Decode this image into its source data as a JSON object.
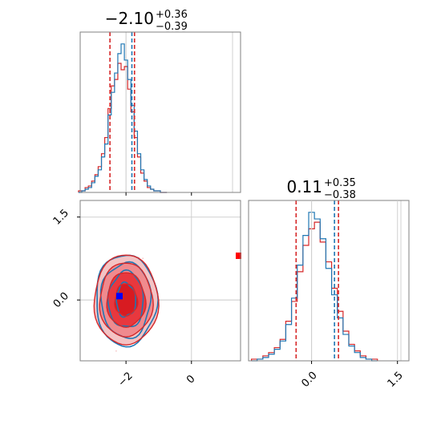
{
  "chart_data": [
    {
      "type": "histogram",
      "panel": "marginal-param-1",
      "title": {
        "value": "−2.10",
        "upper": "+0.36",
        "lower": "−0.39"
      },
      "xlim": [
        -3.4,
        1.5
      ],
      "series": [
        {
          "color": "#1f77b4",
          "x": [
            -3.4,
            -3.3,
            -3.2,
            -3.1,
            -3.0,
            -2.9,
            -2.8,
            -2.7,
            -2.6,
            -2.5,
            -2.4,
            -2.3,
            -2.2,
            -2.1,
            -2.0,
            -1.9,
            -1.8,
            -1.7,
            -1.6,
            -1.5,
            -1.4,
            -1.3,
            -1.2,
            -1.1,
            -1.0,
            -0.9,
            -0.8
          ],
          "y": [
            0,
            1,
            2,
            3,
            6,
            10,
            14,
            22,
            30,
            48,
            62,
            74,
            86,
            92,
            82,
            70,
            54,
            38,
            24,
            14,
            8,
            4,
            2,
            1,
            1,
            0,
            0
          ]
        },
        {
          "color": "#d62728",
          "x": [
            -3.4,
            -3.3,
            -3.2,
            -3.1,
            -3.0,
            -2.9,
            -2.8,
            -2.7,
            -2.6,
            -2.5,
            -2.4,
            -2.3,
            -2.2,
            -2.1,
            -2.0,
            -1.9,
            -1.8,
            -1.7,
            -1.6,
            -1.5,
            -1.4,
            -1.3,
            -1.2,
            -1.1,
            -1.0,
            -0.9,
            -0.8
          ],
          "y": [
            1,
            1,
            3,
            4,
            7,
            11,
            16,
            24,
            34,
            52,
            66,
            70,
            80,
            76,
            78,
            64,
            50,
            34,
            22,
            12,
            7,
            3,
            2,
            1,
            1,
            0,
            0
          ]
        }
      ],
      "quantile_lines": [
        {
          "color": "#d62728",
          "x": -2.49
        },
        {
          "color": "#d62728",
          "x": -1.74
        },
        {
          "color": "#1f77b4",
          "x": -1.82
        }
      ],
      "truth_line": -2.0
    },
    {
      "type": "histogram",
      "panel": "marginal-param-2",
      "title": {
        "value": "0.11",
        "upper": "+0.35",
        "lower": "−0.38"
      },
      "xlim": [
        -1.1,
        1.7
      ],
      "xticks": [
        "0.0",
        "1.5"
      ],
      "series": [
        {
          "color": "#1f77b4",
          "x": [
            -1.0,
            -0.9,
            -0.8,
            -0.7,
            -0.6,
            -0.5,
            -0.4,
            -0.3,
            -0.2,
            -0.1,
            0.0,
            0.1,
            0.2,
            0.3,
            0.4,
            0.5,
            0.6,
            0.7,
            0.8,
            0.9,
            1.0,
            1.1
          ],
          "y": [
            0,
            1,
            2,
            4,
            7,
            12,
            22,
            38,
            58,
            76,
            90,
            86,
            74,
            56,
            40,
            26,
            16,
            9,
            5,
            2,
            1,
            0
          ]
        },
        {
          "color": "#d62728",
          "x": [
            -1.0,
            -0.9,
            -0.8,
            -0.7,
            -0.6,
            -0.5,
            -0.4,
            -0.3,
            -0.2,
            -0.1,
            0.0,
            0.1,
            0.2,
            0.3,
            0.4,
            0.5,
            0.6,
            0.7,
            0.8,
            0.9,
            1.0,
            1.1
          ],
          "y": [
            1,
            1,
            3,
            5,
            8,
            13,
            24,
            36,
            54,
            70,
            80,
            84,
            72,
            60,
            44,
            30,
            18,
            10,
            6,
            3,
            1,
            1
          ]
        }
      ],
      "quantile_lines": [
        {
          "color": "#d62728",
          "x": -0.27
        },
        {
          "color": "#d62728",
          "x": 0.47
        },
        {
          "color": "#1f77b4",
          "x": 0.4
        }
      ],
      "truth_line": 0.0
    },
    {
      "type": "contour",
      "panel": "joint-2d",
      "xlim": [
        -3.4,
        1.5
      ],
      "ylim": [
        -1.1,
        1.8
      ],
      "xticks": [
        "−2",
        "0"
      ],
      "yticks": [
        "0.0",
        "1.5"
      ],
      "red_fill": [
        "#f4c3c4",
        "#f08a8e",
        "#e8383e",
        "#d81b21"
      ],
      "blue_stroke": "#1f77b4",
      "red_stroke": "#d62728",
      "center": [
        -2.0,
        0.0
      ],
      "marker_blue": {
        "x": -2.2,
        "y": 0.07,
        "color": "#0000ff"
      },
      "marker_red_edge": {
        "x": 1.5,
        "y": 0.8,
        "color": "#ff0000"
      }
    }
  ]
}
